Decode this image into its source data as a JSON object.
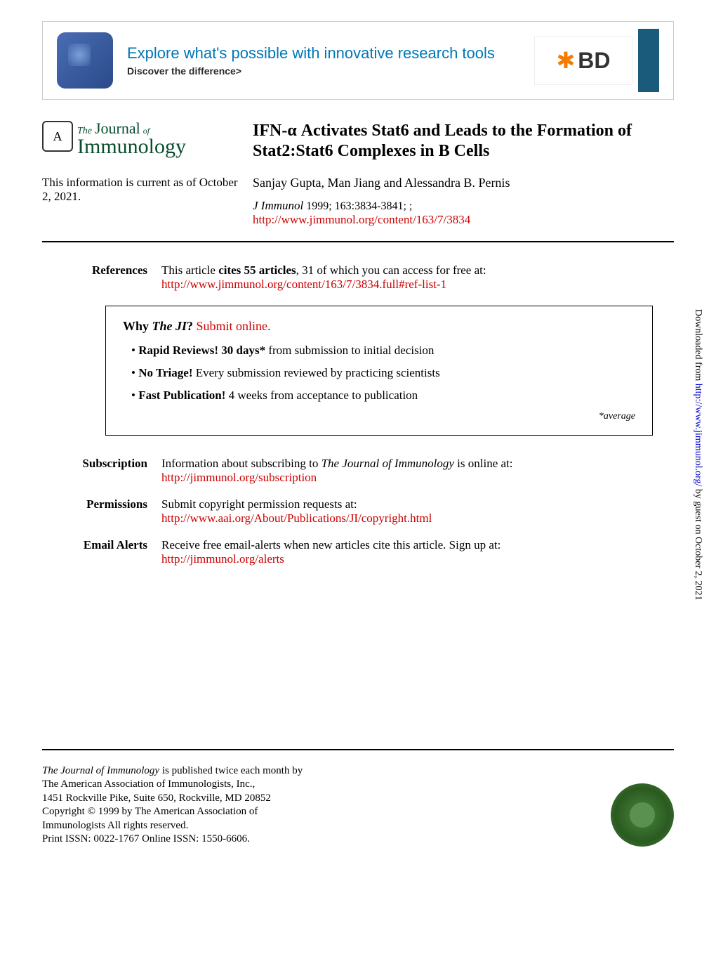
{
  "banner": {
    "headline": "Explore what's possible with innovative research tools",
    "sub": "Discover the difference>",
    "bd_logo": "BD"
  },
  "journal": {
    "badge": "A",
    "the": "The",
    "journal": "Journal",
    "of": "of",
    "immunology": "Immunology"
  },
  "article": {
    "title": "IFN-α Activates Stat6 and Leads to the Formation of Stat2:Stat6 Complexes in B Cells",
    "authors": "Sanjay Gupta, Man Jiang and Alessandra B. Pernis",
    "citation_journal": "J Immunol",
    "citation_rest": " 1999; 163:3834-3841; ;",
    "url": "http://www.jimmunol.org/content/163/7/3834"
  },
  "currency": "This information is current as of October 2, 2021.",
  "references": {
    "label": "References",
    "text_pre": "This article ",
    "text_bold": "cites 55 articles",
    "text_post": ", 31 of which you can access for free at:",
    "url": "http://www.jimmunol.org/content/163/7/3834.full#ref-list-1"
  },
  "why_box": {
    "title_pre": "Why ",
    "title_ji": "The JI",
    "title_q": "? ",
    "title_link": "Submit online.",
    "bullets": [
      {
        "bold": "Rapid Reviews! 30 days*",
        "rest": " from submission to initial decision"
      },
      {
        "bold": "No Triage!",
        "rest": " Every submission reviewed by practicing scientists"
      },
      {
        "bold": "Fast Publication!",
        "rest": " 4 weeks from acceptance to publication"
      }
    ],
    "avg": "*average"
  },
  "info_sections": [
    {
      "label": "Subscription",
      "text_pre": "Information about subscribing to ",
      "text_ital": "The Journal of Immunology",
      "text_post": " is online at:",
      "url": "http://jimmunol.org/subscription"
    },
    {
      "label": "Permissions",
      "text_pre": "Submit copyright permission requests at:",
      "text_ital": "",
      "text_post": "",
      "url": "http://www.aai.org/About/Publications/JI/copyright.html"
    },
    {
      "label": "Email Alerts",
      "text_pre": "Receive free email-alerts when new articles cite this article. Sign up at:",
      "text_ital": "",
      "text_post": "",
      "url": "http://jimmunol.org/alerts"
    }
  ],
  "footer": {
    "lines": [
      "The Journal of Immunology is published twice each month by",
      "The American Association of Immunologists, Inc.,",
      "1451 Rockville Pike, Suite 650, Rockville, MD 20852",
      "Copyright © 1999 by The American Association of",
      "Immunologists All rights reserved.",
      "Print ISSN: 0022-1767 Online ISSN: 1550-6606."
    ]
  },
  "sidebar": {
    "pre": "Downloaded from ",
    "link": "http://www.jimmunol.org/",
    "post": " by guest on October 2, 2021"
  }
}
